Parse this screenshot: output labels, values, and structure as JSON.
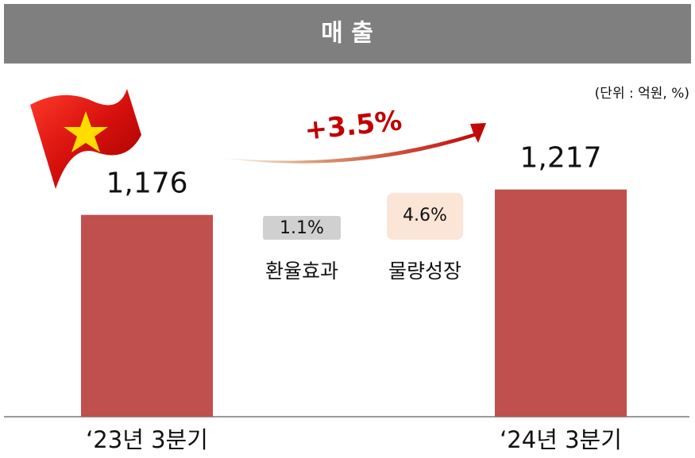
{
  "chart_data": {
    "type": "bar",
    "title": "매 출",
    "unit": "(단위 : 억원, %)",
    "categories": [
      "‘23년 3분기",
      "‘24년 3분기"
    ],
    "values": [
      1176,
      1217
    ],
    "value_labels": [
      "1,176",
      "1,217"
    ],
    "color": "#c0504d",
    "ylim": [
      850,
      1250
    ],
    "annotations": {
      "growth": "+3.5%",
      "fx_value": "1.1%",
      "fx_label": "환율효과",
      "volume_value": "4.6%",
      "volume_label": "물량성장"
    }
  }
}
